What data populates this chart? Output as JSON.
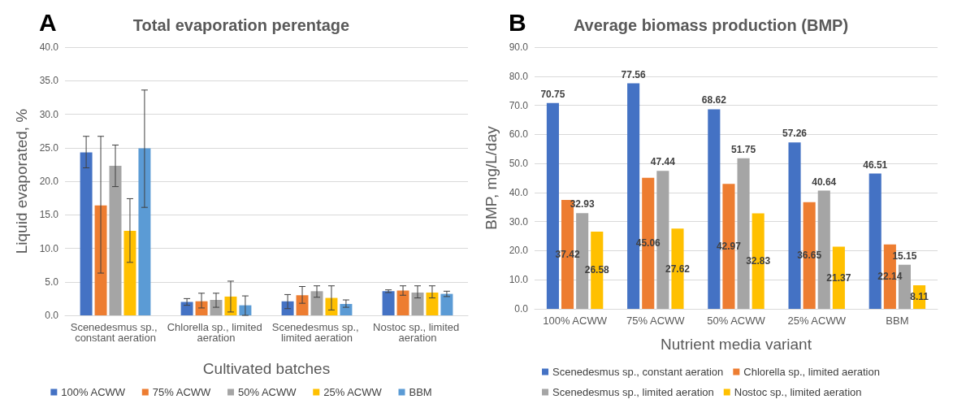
{
  "chart_data": [
    {
      "type": "bar",
      "title": "Total evaporation perentage",
      "xlabel": "Cultivated batches",
      "ylabel": "Liquid evaporated, %",
      "annotations": [
        "A"
      ],
      "categories": [
        "Scenedesmus sp., constant aeration",
        "Chlorella sp., limited aeration",
        "Scenedesmus sp., limited aeration",
        "Nostoc sp., limited aeration"
      ],
      "series": [
        {
          "name": "100% ACWW",
          "color": "#4472c4",
          "values": [
            24.3,
            2.0,
            2.1,
            3.6
          ],
          "errors": [
            [
              22.0,
              26.7
            ],
            [
              1.5,
              2.5
            ],
            [
              1.0,
              3.1
            ],
            [
              3.4,
              3.8
            ]
          ]
        },
        {
          "name": "75% ACWW",
          "color": "#ed7d31",
          "values": [
            16.4,
            2.1,
            3.0,
            3.7
          ],
          "errors": [
            [
              6.3,
              26.7
            ],
            [
              1.1,
              3.3
            ],
            [
              1.8,
              4.3
            ],
            [
              3.0,
              4.4
            ]
          ]
        },
        {
          "name": "50% ACWW",
          "color": "#a5a5a5",
          "values": [
            22.3,
            2.3,
            3.6,
            3.4
          ],
          "errors": [
            [
              19.2,
              25.4
            ],
            [
              1.2,
              3.3
            ],
            [
              2.7,
              4.4
            ],
            [
              2.6,
              4.4
            ]
          ]
        },
        {
          "name": "25% ACWW",
          "color": "#ffc000",
          "values": [
            12.6,
            2.8,
            2.6,
            3.4
          ],
          "errors": [
            [
              7.9,
              17.4
            ],
            [
              0.5,
              5.1
            ],
            [
              0.8,
              4.4
            ],
            [
              2.6,
              4.4
            ]
          ]
        },
        {
          "name": "BBM",
          "color": "#5b9bd5",
          "values": [
            24.9,
            1.5,
            1.7,
            3.2
          ],
          "errors": [
            [
              16.1,
              33.6
            ],
            [
              0,
              2.9
            ],
            [
              1.2,
              2.3
            ],
            [
              2.8,
              3.6
            ]
          ]
        }
      ],
      "ylim": [
        0,
        40
      ],
      "yticks": [
        {
          "value": 0,
          "label": "0.0"
        },
        {
          "value": 5,
          "label": "5.0"
        },
        {
          "value": 10,
          "label": "10.0"
        },
        {
          "value": 15,
          "label": "15.0"
        },
        {
          "value": 20,
          "label": "20.0"
        },
        {
          "value": 25,
          "label": "25.0"
        },
        {
          "value": 30,
          "label": "30.0"
        },
        {
          "value": 35,
          "label": "35.0"
        },
        {
          "value": 40,
          "label": "40.0"
        }
      ],
      "grid": "y",
      "legend": "bottom"
    },
    {
      "type": "bar",
      "title": "Average biomass production (BMP)",
      "xlabel": "Nutrient media variant",
      "ylabel": "BMP, mg/L/day",
      "annotations": [
        "B"
      ],
      "categories": [
        "100% ACWW",
        "75% ACWW",
        "50% ACWW",
        "25% ACWW",
        "BBM"
      ],
      "series": [
        {
          "name": "Scenedesmus sp., constant aeration",
          "color": "#4472c4",
          "values": [
            70.75,
            77.56,
            68.62,
            57.26,
            46.51
          ]
        },
        {
          "name": "Chlorella sp., limited aeration",
          "color": "#ed7d31",
          "values": [
            37.42,
            45.06,
            42.97,
            36.65,
            22.14
          ]
        },
        {
          "name": "Scenedesmus sp., limited aeration",
          "color": "#a5a5a5",
          "values": [
            32.93,
            47.44,
            51.75,
            40.64,
            15.15
          ]
        },
        {
          "name": "Nostoc sp., limited aeration",
          "color": "#ffc000",
          "values": [
            26.58,
            27.62,
            32.83,
            21.37,
            8.11
          ]
        }
      ],
      "ylim": [
        0,
        90
      ],
      "yticks": [
        {
          "value": 0,
          "label": "0.0"
        },
        {
          "value": 10,
          "label": "10.0"
        },
        {
          "value": 20,
          "label": "20.0"
        },
        {
          "value": 30,
          "label": "30.0"
        },
        {
          "value": 40,
          "label": "40.0"
        },
        {
          "value": 50,
          "label": "50.0"
        },
        {
          "value": 60,
          "label": "60.0"
        },
        {
          "value": 70,
          "label": "70.0"
        },
        {
          "value": 80,
          "label": "80.0"
        },
        {
          "value": 90,
          "label": "90.0"
        }
      ],
      "grid": "y",
      "legend": "bottom",
      "data_labels": true
    }
  ]
}
